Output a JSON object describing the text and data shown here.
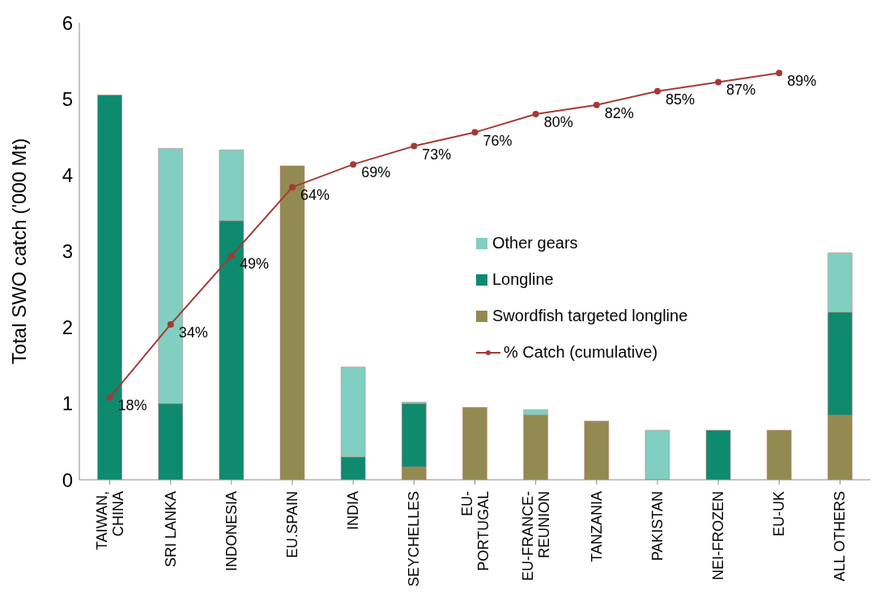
{
  "chart_data": {
    "type": "bar",
    "stacked": true,
    "ylabel": "Total SWO catch ('000 Mt)",
    "categories": [
      "TAIWAN, CHINA",
      "SRI LANKA",
      "INDONESIA",
      "EU.SPAIN",
      "INDIA",
      "SEYCHELLES",
      "EU-PORTUGAL",
      "EU-FRANCE-REUNION",
      "TANZANIA",
      "PAKISTAN",
      "NEI-FROZEN",
      "EU-UK",
      "ALL OTHERS"
    ],
    "series": [
      {
        "name": "Swordfish targeted longline",
        "color": "#938a52",
        "values": [
          0,
          0,
          0,
          4.12,
          0,
          0.17,
          0.95,
          0.85,
          0.76,
          0,
          0,
          0.65,
          0.85
        ]
      },
      {
        "name": "Longline",
        "color": "#0e8a6e",
        "values": [
          5.05,
          1.0,
          3.4,
          0,
          0.3,
          0.83,
          0,
          0,
          0.01,
          0,
          0.65,
          0,
          1.35
        ]
      },
      {
        "name": "Other gears",
        "color": "#80cfc0",
        "values": [
          0,
          3.35,
          0.93,
          0,
          1.18,
          0.02,
          0,
          0.07,
          0,
          0.65,
          0,
          0,
          0.78
        ]
      },
      {
        "name": "% Catch (cumulative)",
        "type": "line",
        "axis": "y2",
        "color": "#a33a36",
        "values": [
          18,
          34,
          49,
          64,
          69,
          73,
          76,
          80,
          82,
          85,
          87,
          89,
          null
        ],
        "value_labels": [
          "18%",
          "34%",
          "49%",
          "64%",
          "69%",
          "73%",
          "76%",
          "80%",
          "82%",
          "85%",
          "87%",
          "89%",
          null
        ]
      }
    ],
    "ylim": [
      0,
      6
    ],
    "yticks": [
      0,
      1,
      2,
      3,
      4,
      5,
      6
    ],
    "y2lim": [
      0,
      100
    ],
    "legend": "center",
    "marker": "circle",
    "line_style": "solid"
  }
}
